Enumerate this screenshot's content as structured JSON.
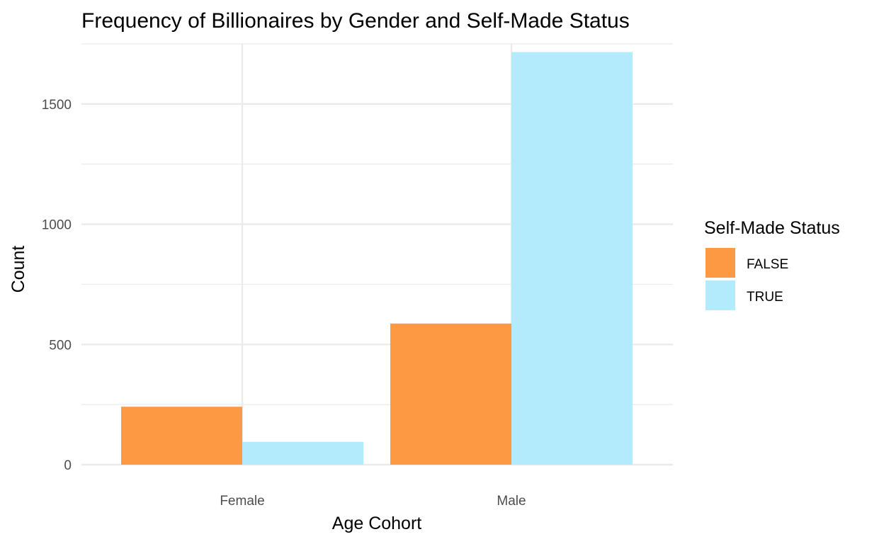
{
  "chart_data": {
    "type": "bar",
    "title": "Frequency of Billionaires by Gender and Self-Made Status",
    "xlabel": "Age Cohort",
    "ylabel": "Count",
    "categories": [
      "Female",
      "Male"
    ],
    "series": [
      {
        "name": "FALSE",
        "values": [
          241,
          587
        ],
        "color": "#FE9943"
      },
      {
        "name": "TRUE",
        "values": [
          95,
          1716
        ],
        "color": "#B3EBFD"
      }
    ],
    "ylim": [
      0,
      1750
    ],
    "yticks": [
      0,
      500,
      1000,
      1500
    ],
    "grid": true,
    "legend": {
      "title": "Self-Made Status",
      "placement": "right"
    }
  }
}
